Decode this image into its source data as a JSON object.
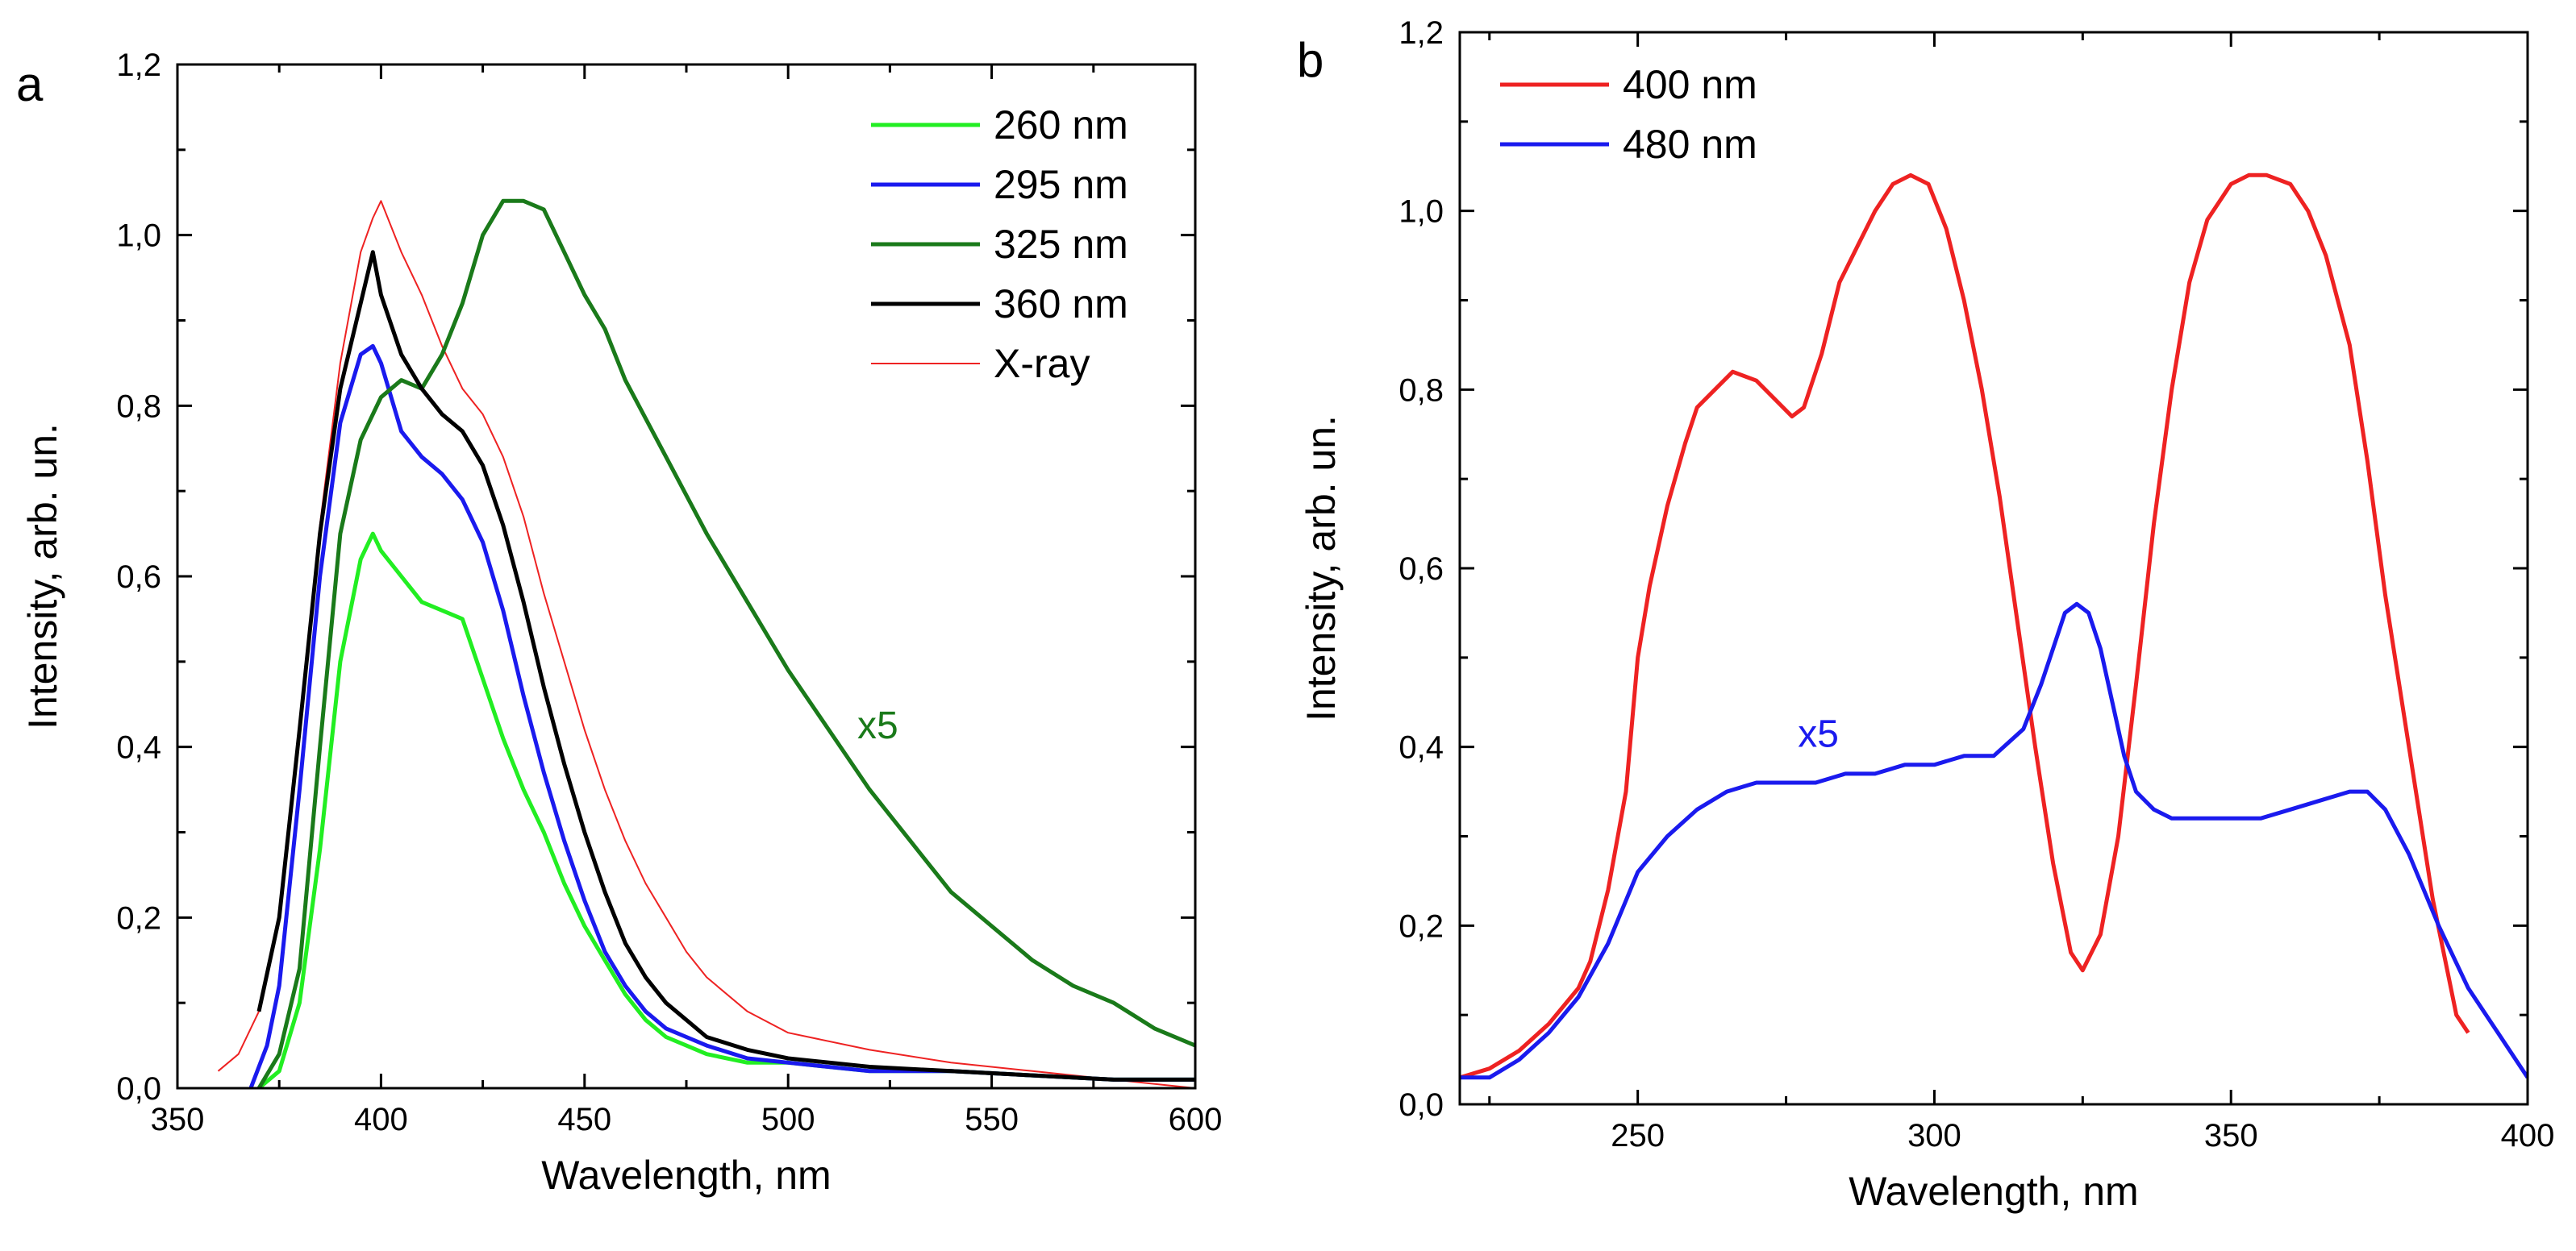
{
  "chart_data": [
    {
      "panel": "a",
      "type": "line",
      "xlabel": "Wavelength, nm",
      "ylabel": "Intensity, arb. un.",
      "xlim": [
        350,
        600
      ],
      "ylim": [
        0,
        1.2
      ],
      "xticks": [
        "350",
        "400",
        "450",
        "500",
        "550",
        "600"
      ],
      "yticks": [
        "0,0",
        "0,2",
        "0,4",
        "0,6",
        "0,8",
        "1,0",
        "1,2"
      ],
      "legend_position": "top-right",
      "annotation": {
        "text": "x5",
        "x": 517,
        "y": 0.41,
        "color": "#1a7a1a"
      },
      "series": [
        {
          "name": "260 nm",
          "color": "#22ee22",
          "width": 5,
          "x": [
            370,
            375,
            380,
            385,
            390,
            395,
            398,
            400,
            405,
            410,
            415,
            420,
            425,
            430,
            435,
            440,
            445,
            450,
            455,
            460,
            465,
            470,
            475,
            480,
            490,
            500,
            520,
            540,
            560,
            580,
            600
          ],
          "y": [
            0.0,
            0.02,
            0.1,
            0.28,
            0.5,
            0.62,
            0.65,
            0.63,
            0.6,
            0.57,
            0.56,
            0.55,
            0.48,
            0.41,
            0.35,
            0.3,
            0.24,
            0.19,
            0.15,
            0.11,
            0.08,
            0.06,
            0.05,
            0.04,
            0.03,
            0.03,
            0.02,
            0.02,
            0.015,
            0.01,
            0.01
          ]
        },
        {
          "name": "295 nm",
          "color": "#1a1aee",
          "width": 5,
          "x": [
            368,
            372,
            375,
            380,
            385,
            390,
            395,
            398,
            400,
            405,
            410,
            415,
            420,
            425,
            430,
            435,
            440,
            445,
            450,
            455,
            460,
            465,
            470,
            475,
            480,
            490,
            500,
            520,
            540,
            560,
            580,
            600
          ],
          "y": [
            0.0,
            0.05,
            0.12,
            0.35,
            0.6,
            0.78,
            0.86,
            0.87,
            0.85,
            0.77,
            0.74,
            0.72,
            0.69,
            0.64,
            0.56,
            0.46,
            0.37,
            0.29,
            0.22,
            0.16,
            0.12,
            0.09,
            0.07,
            0.06,
            0.05,
            0.035,
            0.03,
            0.02,
            0.02,
            0.015,
            0.01,
            0.01
          ]
        },
        {
          "name": "325 nm",
          "color": "#1a7a1a",
          "width": 5,
          "x": [
            370,
            375,
            380,
            385,
            390,
            395,
            400,
            405,
            410,
            415,
            420,
            425,
            430,
            435,
            440,
            445,
            450,
            455,
            460,
            470,
            480,
            490,
            500,
            510,
            520,
            530,
            540,
            550,
            560,
            570,
            580,
            590,
            600
          ],
          "y": [
            0.0,
            0.04,
            0.14,
            0.4,
            0.65,
            0.76,
            0.81,
            0.83,
            0.82,
            0.86,
            0.92,
            1.0,
            1.04,
            1.04,
            1.03,
            0.98,
            0.93,
            0.89,
            0.83,
            0.74,
            0.65,
            0.57,
            0.49,
            0.42,
            0.35,
            0.29,
            0.23,
            0.19,
            0.15,
            0.12,
            0.1,
            0.07,
            0.05
          ]
        },
        {
          "name": "360 nm",
          "color": "#000000",
          "width": 5,
          "x": [
            370,
            375,
            380,
            385,
            390,
            395,
            398,
            400,
            405,
            410,
            415,
            420,
            425,
            430,
            435,
            440,
            445,
            450,
            455,
            460,
            465,
            470,
            475,
            480,
            490,
            500,
            520,
            540,
            560,
            580,
            600
          ],
          "y": [
            0.09,
            0.2,
            0.42,
            0.65,
            0.82,
            0.92,
            0.98,
            0.93,
            0.86,
            0.82,
            0.79,
            0.77,
            0.73,
            0.66,
            0.57,
            0.47,
            0.38,
            0.3,
            0.23,
            0.17,
            0.13,
            0.1,
            0.08,
            0.06,
            0.045,
            0.035,
            0.025,
            0.02,
            0.015,
            0.01,
            0.01
          ]
        },
        {
          "name": "X-ray",
          "color": "#ee2222",
          "width": 2,
          "x": [
            360,
            365,
            370,
            375,
            380,
            385,
            390,
            395,
            398,
            400,
            405,
            410,
            415,
            420,
            425,
            430,
            435,
            440,
            445,
            450,
            455,
            460,
            465,
            470,
            475,
            480,
            490,
            500,
            520,
            540,
            560,
            580,
            600
          ],
          "y": [
            0.02,
            0.04,
            0.09,
            0.2,
            0.42,
            0.66,
            0.85,
            0.98,
            1.02,
            1.04,
            0.98,
            0.93,
            0.87,
            0.82,
            0.79,
            0.74,
            0.67,
            0.58,
            0.5,
            0.42,
            0.35,
            0.29,
            0.24,
            0.2,
            0.16,
            0.13,
            0.09,
            0.065,
            0.045,
            0.03,
            0.02,
            0.01,
            0.0
          ]
        }
      ]
    },
    {
      "panel": "b",
      "type": "line",
      "xlabel": "Wavelength, nm",
      "ylabel": "Intensity, arb. un.",
      "xlim": [
        220,
        400
      ],
      "ylim": [
        0,
        1.2
      ],
      "xticks": [
        "250",
        "300",
        "350",
        "400"
      ],
      "yticks": [
        "0,0",
        "0,2",
        "0,4",
        "0,6",
        "0,8",
        "1,0",
        "1,2"
      ],
      "legend_position": "top-left",
      "annotation": {
        "text": "x5",
        "x": 277,
        "y": 0.4,
        "color": "#1a1aee"
      },
      "series": [
        {
          "name": "400 nm",
          "color": "#ee2222",
          "width": 5,
          "x": [
            220,
            225,
            230,
            235,
            240,
            242,
            245,
            248,
            250,
            252,
            255,
            258,
            260,
            263,
            266,
            270,
            273,
            276,
            278,
            281,
            284,
            287,
            290,
            293,
            296,
            299,
            302,
            305,
            308,
            311,
            314,
            317,
            320,
            323,
            325,
            328,
            331,
            334,
            337,
            340,
            343,
            346,
            350,
            353,
            356,
            360,
            363,
            366,
            370,
            373,
            376,
            380,
            384,
            388,
            390
          ],
          "y": [
            0.03,
            0.04,
            0.06,
            0.09,
            0.13,
            0.16,
            0.24,
            0.35,
            0.5,
            0.58,
            0.67,
            0.74,
            0.78,
            0.8,
            0.82,
            0.81,
            0.79,
            0.77,
            0.78,
            0.84,
            0.92,
            0.96,
            1.0,
            1.03,
            1.04,
            1.03,
            0.98,
            0.9,
            0.8,
            0.68,
            0.54,
            0.4,
            0.27,
            0.17,
            0.15,
            0.19,
            0.3,
            0.47,
            0.65,
            0.8,
            0.92,
            0.99,
            1.03,
            1.04,
            1.04,
            1.03,
            1.0,
            0.95,
            0.85,
            0.72,
            0.57,
            0.4,
            0.23,
            0.1,
            0.08
          ]
        },
        {
          "name": "480 nm",
          "color": "#1a1aee",
          "width": 5,
          "x": [
            220,
            225,
            230,
            235,
            240,
            245,
            250,
            255,
            260,
            265,
            270,
            275,
            280,
            285,
            290,
            295,
            300,
            305,
            310,
            315,
            318,
            320,
            322,
            324,
            326,
            328,
            330,
            332,
            334,
            337,
            340,
            345,
            350,
            355,
            360,
            365,
            370,
            373,
            376,
            380,
            385,
            390,
            395,
            400
          ],
          "y": [
            0.03,
            0.03,
            0.05,
            0.08,
            0.12,
            0.18,
            0.26,
            0.3,
            0.33,
            0.35,
            0.36,
            0.36,
            0.36,
            0.37,
            0.37,
            0.38,
            0.38,
            0.39,
            0.39,
            0.42,
            0.47,
            0.51,
            0.55,
            0.56,
            0.55,
            0.51,
            0.45,
            0.39,
            0.35,
            0.33,
            0.32,
            0.32,
            0.32,
            0.32,
            0.33,
            0.34,
            0.35,
            0.35,
            0.33,
            0.28,
            0.2,
            0.13,
            0.08,
            0.03
          ]
        }
      ]
    }
  ]
}
